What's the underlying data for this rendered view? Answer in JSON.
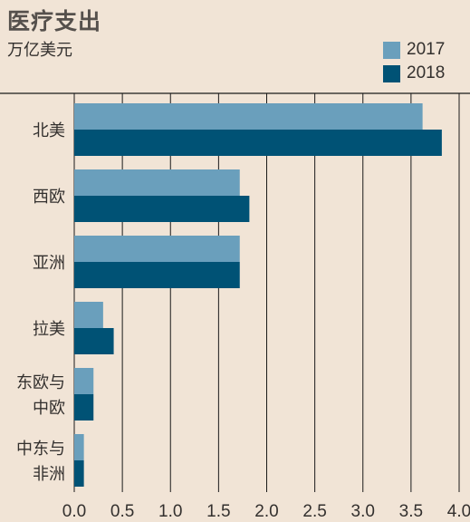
{
  "title": "医疗支出",
  "subtitle": "万亿美元",
  "colors": {
    "background": "#f1e4d6",
    "series_2017": "#6a9fbc",
    "series_2018": "#005275",
    "grid": "#1a1a1a"
  },
  "chart_data": {
    "type": "bar",
    "orientation": "horizontal",
    "title": "医疗支出",
    "ylabel": "万亿美元",
    "categories": [
      "北美",
      "西欧",
      "亚洲",
      "拉美",
      "东欧与\n中欧",
      "中东与\n非洲"
    ],
    "series": [
      {
        "name": "2017",
        "values": [
          3.62,
          1.72,
          1.72,
          0.3,
          0.2,
          0.1
        ]
      },
      {
        "name": "2018",
        "values": [
          3.82,
          1.82,
          1.72,
          0.41,
          0.2,
          0.1
        ]
      }
    ],
    "xlim": [
      0,
      4.0
    ],
    "xticks": [
      "0.0",
      "0.5",
      "1.0",
      "1.5",
      "2.0",
      "2.5",
      "3.0",
      "3.5",
      "4.0"
    ],
    "grid": "vertical",
    "legend": "top-right"
  }
}
